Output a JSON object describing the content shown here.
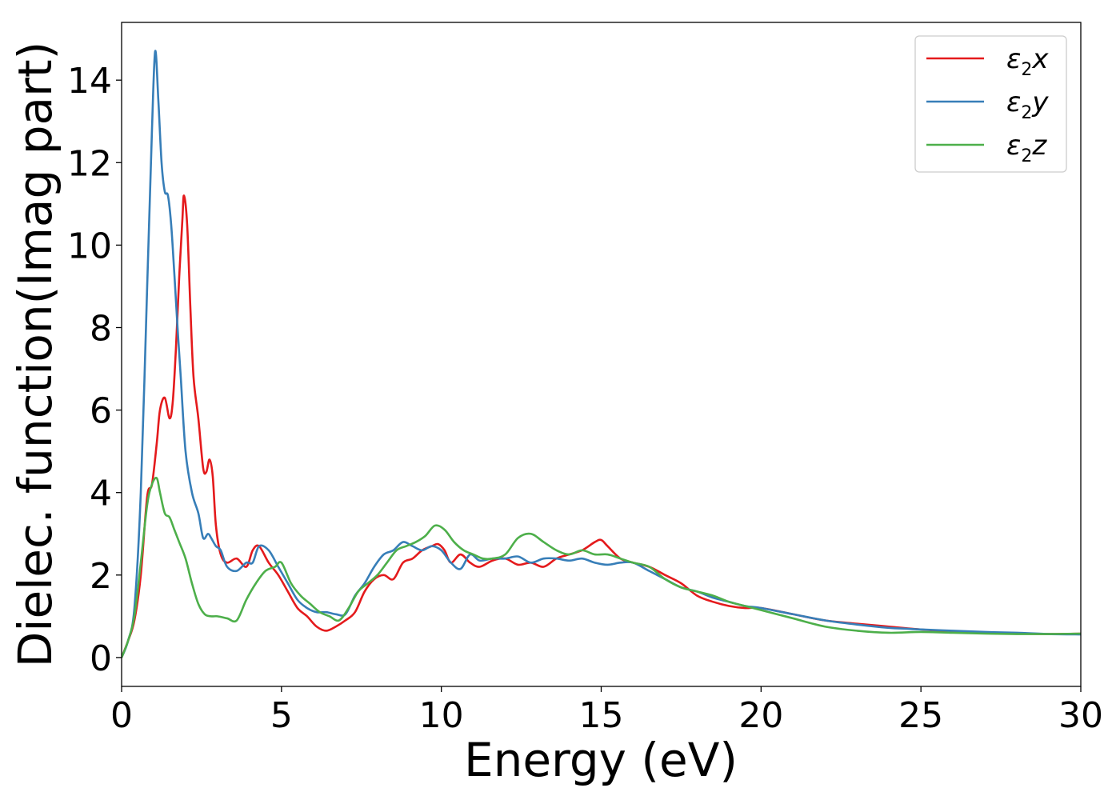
{
  "chart_data": {
    "type": "line",
    "xlabel": "Energy (eV)",
    "ylabel": "Dielec. function(Imag part)",
    "xlim": [
      0,
      30
    ],
    "ylim": [
      -0.7,
      15.4
    ],
    "xticks": [
      0,
      5,
      10,
      15,
      20,
      25,
      30
    ],
    "yticks": [
      0,
      2,
      4,
      6,
      8,
      10,
      12,
      14
    ],
    "grid": false,
    "legend_position": "top-right",
    "series": [
      {
        "name": "ε2x",
        "color": "#e41a1c",
        "x": [
          0,
          0.2,
          0.4,
          0.6,
          0.8,
          0.95,
          1.1,
          1.2,
          1.35,
          1.5,
          1.6,
          1.7,
          1.8,
          1.9,
          1.95,
          2.05,
          2.15,
          2.25,
          2.4,
          2.55,
          2.65,
          2.75,
          2.85,
          2.95,
          3.1,
          3.3,
          3.6,
          3.9,
          4.1,
          4.3,
          4.6,
          4.9,
          5.2,
          5.5,
          5.8,
          6.1,
          6.4,
          6.7,
          7.0,
          7.3,
          7.6,
          7.9,
          8.2,
          8.5,
          8.8,
          9.1,
          9.4,
          9.7,
          9.9,
          10.1,
          10.3,
          10.6,
          10.9,
          11.2,
          11.6,
          12.0,
          12.4,
          12.8,
          13.2,
          13.6,
          14.0,
          14.4,
          14.8,
          15.0,
          15.2,
          15.6,
          16.0,
          16.5,
          17.0,
          17.5,
          18.0,
          18.5,
          19.0,
          19.5,
          20.0,
          21.0,
          22.0,
          23.0,
          24.0,
          25.0,
          26.0,
          27.0,
          28.0,
          29.0,
          30.0
        ],
        "values": [
          0.0,
          0.4,
          0.9,
          2.0,
          3.9,
          4.2,
          5.2,
          6.0,
          6.3,
          5.8,
          6.2,
          7.5,
          9.2,
          10.6,
          11.2,
          10.5,
          8.5,
          6.8,
          5.8,
          4.6,
          4.5,
          4.8,
          4.4,
          3.2,
          2.5,
          2.3,
          2.4,
          2.2,
          2.6,
          2.7,
          2.3,
          2.0,
          1.6,
          1.2,
          1.0,
          0.75,
          0.65,
          0.75,
          0.9,
          1.1,
          1.6,
          1.9,
          2.0,
          1.9,
          2.3,
          2.4,
          2.6,
          2.7,
          2.75,
          2.6,
          2.3,
          2.5,
          2.3,
          2.2,
          2.35,
          2.4,
          2.25,
          2.3,
          2.2,
          2.4,
          2.5,
          2.6,
          2.8,
          2.85,
          2.7,
          2.4,
          2.3,
          2.2,
          2.0,
          1.8,
          1.5,
          1.35,
          1.25,
          1.2,
          1.2,
          1.05,
          0.9,
          0.82,
          0.75,
          0.68,
          0.63,
          0.6,
          0.58,
          0.57,
          0.58
        ]
      },
      {
        "name": "ε2y",
        "color": "#377eb8",
        "x": [
          0,
          0.2,
          0.4,
          0.6,
          0.8,
          0.95,
          1.05,
          1.15,
          1.25,
          1.35,
          1.45,
          1.55,
          1.65,
          1.75,
          1.85,
          2.0,
          2.2,
          2.4,
          2.55,
          2.7,
          2.8,
          2.95,
          3.1,
          3.3,
          3.6,
          3.9,
          4.1,
          4.3,
          4.6,
          4.9,
          5.2,
          5.5,
          5.8,
          6.1,
          6.4,
          6.7,
          7.0,
          7.3,
          7.6,
          7.9,
          8.2,
          8.5,
          8.8,
          9.1,
          9.4,
          9.7,
          10.0,
          10.3,
          10.6,
          10.9,
          11.2,
          11.6,
          12.0,
          12.4,
          12.8,
          13.2,
          13.6,
          14.0,
          14.4,
          14.8,
          15.2,
          15.6,
          16.0,
          16.5,
          17.0,
          17.5,
          18.0,
          18.5,
          19.0,
          19.5,
          20.0,
          21.0,
          22.0,
          23.0,
          24.0,
          24.5,
          25.0,
          26.0,
          27.0,
          28.0,
          29.0,
          30.0
        ],
        "values": [
          0.0,
          0.4,
          1.2,
          4.0,
          9.0,
          12.8,
          14.7,
          13.5,
          12.0,
          11.3,
          11.2,
          10.5,
          9.3,
          8.0,
          6.8,
          5.0,
          4.0,
          3.5,
          2.9,
          3.0,
          2.9,
          2.7,
          2.6,
          2.2,
          2.1,
          2.3,
          2.3,
          2.7,
          2.6,
          2.2,
          1.8,
          1.4,
          1.2,
          1.1,
          1.1,
          1.05,
          1.05,
          1.5,
          1.8,
          2.2,
          2.5,
          2.6,
          2.8,
          2.7,
          2.6,
          2.7,
          2.6,
          2.3,
          2.15,
          2.5,
          2.35,
          2.4,
          2.4,
          2.45,
          2.3,
          2.4,
          2.4,
          2.35,
          2.4,
          2.3,
          2.25,
          2.3,
          2.3,
          2.1,
          1.9,
          1.7,
          1.6,
          1.45,
          1.35,
          1.25,
          1.2,
          1.05,
          0.9,
          0.8,
          0.72,
          0.7,
          0.68,
          0.65,
          0.62,
          0.6,
          0.57,
          0.56
        ]
      },
      {
        "name": "ε2z",
        "color": "#4daf4a",
        "x": [
          0,
          0.2,
          0.4,
          0.6,
          0.8,
          0.95,
          1.1,
          1.2,
          1.35,
          1.5,
          1.65,
          1.8,
          2.0,
          2.2,
          2.4,
          2.6,
          2.8,
          3.0,
          3.3,
          3.6,
          3.9,
          4.2,
          4.5,
          4.8,
          5.0,
          5.3,
          5.6,
          5.9,
          6.2,
          6.5,
          6.8,
          7.1,
          7.4,
          7.7,
          8.0,
          8.3,
          8.6,
          8.9,
          9.2,
          9.5,
          9.8,
          10.1,
          10.4,
          10.7,
          11.0,
          11.3,
          11.6,
          12.0,
          12.4,
          12.8,
          13.2,
          13.6,
          14.0,
          14.4,
          14.8,
          15.2,
          15.6,
          16.0,
          16.5,
          17.0,
          17.5,
          18.0,
          18.5,
          19.0,
          19.5,
          20.0,
          21.0,
          22.0,
          23.0,
          24.0,
          25.0,
          26.0,
          27.0,
          28.0,
          29.0,
          30.0
        ],
        "values": [
          0.0,
          0.4,
          1.0,
          2.3,
          3.7,
          4.2,
          4.35,
          4.0,
          3.5,
          3.4,
          3.1,
          2.8,
          2.4,
          1.8,
          1.3,
          1.05,
          1.0,
          1.0,
          0.95,
          0.9,
          1.4,
          1.8,
          2.1,
          2.2,
          2.3,
          1.8,
          1.5,
          1.3,
          1.1,
          1.0,
          0.9,
          1.2,
          1.6,
          1.8,
          2.0,
          2.3,
          2.6,
          2.7,
          2.8,
          2.95,
          3.2,
          3.1,
          2.8,
          2.6,
          2.5,
          2.4,
          2.4,
          2.5,
          2.9,
          3.0,
          2.8,
          2.6,
          2.5,
          2.6,
          2.5,
          2.5,
          2.4,
          2.3,
          2.2,
          1.9,
          1.7,
          1.6,
          1.5,
          1.35,
          1.25,
          1.15,
          0.95,
          0.75,
          0.65,
          0.6,
          0.62,
          0.6,
          0.58,
          0.57,
          0.57,
          0.58
        ]
      }
    ]
  }
}
